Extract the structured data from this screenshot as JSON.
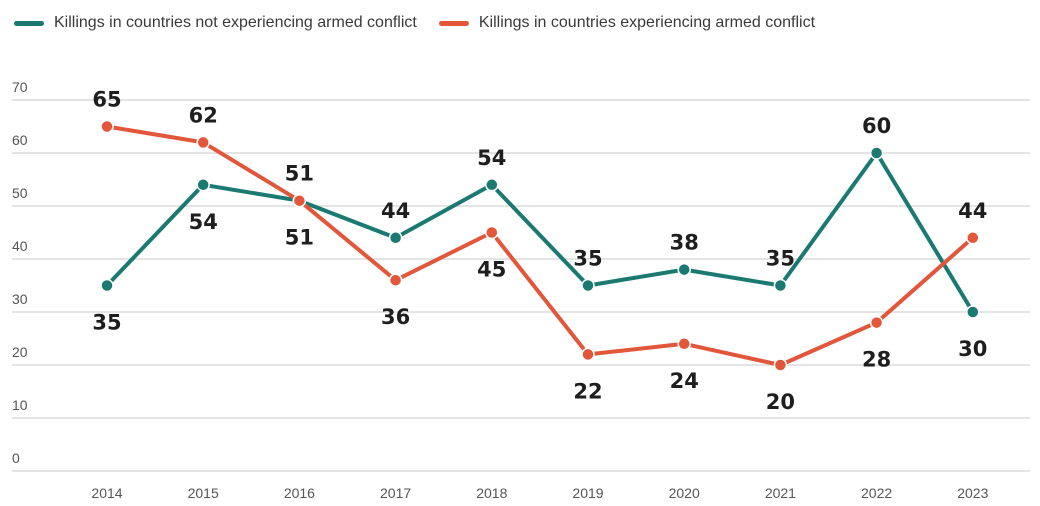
{
  "chart_data": {
    "type": "line",
    "categories": [
      "2014",
      "2015",
      "2016",
      "2017",
      "2018",
      "2019",
      "2020",
      "2021",
      "2022",
      "2023"
    ],
    "series": [
      {
        "name": "Killings in countries not experiencing armed conflict",
        "color": "#1a7a72",
        "values": [
          35,
          54,
          51,
          44,
          54,
          35,
          38,
          35,
          60,
          30
        ],
        "label_position": [
          "below",
          "below",
          "above",
          "above",
          "above",
          "above",
          "above",
          "above",
          "above",
          "below"
        ]
      },
      {
        "name": "Killings in countries experiencing armed conflict",
        "color": "#e2563a",
        "values": [
          65,
          62,
          51,
          36,
          45,
          22,
          24,
          20,
          28,
          44
        ],
        "label_position": [
          "above",
          "above",
          "below",
          "below",
          "below",
          "below",
          "below",
          "below",
          "below",
          "above"
        ]
      }
    ],
    "y_ticks": [
      0,
      10,
      20,
      30,
      40,
      50,
      60,
      70
    ],
    "ylim": [
      0,
      70
    ],
    "grid": true,
    "legend_position": "top-left",
    "title": "",
    "xlabel": "",
    "ylabel": ""
  }
}
